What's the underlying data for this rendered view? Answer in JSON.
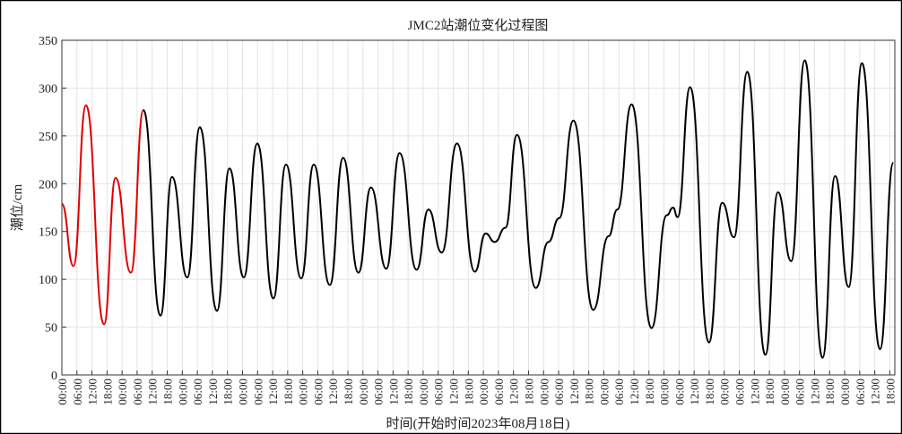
{
  "chart_data": {
    "type": "line",
    "title": "JMC2站潮位变化过程图",
    "xlabel": "时间(开始时间2023年08月18日)",
    "ylabel": "潮位/cm",
    "grid": true,
    "xlim": [
      0,
      332
    ],
    "ylim": [
      0,
      350
    ],
    "yticks": [
      0,
      50,
      100,
      150,
      200,
      250,
      300,
      350
    ],
    "xticks": [
      {
        "value": 0,
        "label": "00:00"
      },
      {
        "value": 6,
        "label": "06:00"
      },
      {
        "value": 12,
        "label": "12:00"
      },
      {
        "value": 18,
        "label": "18:00"
      },
      {
        "value": 24,
        "label": "00:00"
      },
      {
        "value": 30,
        "label": "06:00"
      },
      {
        "value": 36,
        "label": "12:00"
      },
      {
        "value": 42,
        "label": "18:00"
      },
      {
        "value": 48,
        "label": "00:00"
      },
      {
        "value": 54,
        "label": "06:00"
      },
      {
        "value": 60,
        "label": "12:00"
      },
      {
        "value": 66,
        "label": "18:00"
      },
      {
        "value": 72,
        "label": "00:00"
      },
      {
        "value": 78,
        "label": "06:00"
      },
      {
        "value": 84,
        "label": "12:00"
      },
      {
        "value": 90,
        "label": "18:00"
      },
      {
        "value": 96,
        "label": "00:00"
      },
      {
        "value": 102,
        "label": "06:00"
      },
      {
        "value": 108,
        "label": "12:00"
      },
      {
        "value": 114,
        "label": "18:00"
      },
      {
        "value": 120,
        "label": "00:00"
      },
      {
        "value": 126,
        "label": "06:00"
      },
      {
        "value": 132,
        "label": "12:00"
      },
      {
        "value": 138,
        "label": "18:00"
      },
      {
        "value": 144,
        "label": "00:00"
      },
      {
        "value": 150,
        "label": "06:00"
      },
      {
        "value": 156,
        "label": "12:00"
      },
      {
        "value": 162,
        "label": "18:00"
      },
      {
        "value": 168,
        "label": "00:00"
      },
      {
        "value": 174,
        "label": "06:00"
      },
      {
        "value": 180,
        "label": "12:00"
      },
      {
        "value": 186,
        "label": "18:00"
      },
      {
        "value": 192,
        "label": "00:00"
      },
      {
        "value": 198,
        "label": "06:00"
      },
      {
        "value": 204,
        "label": "12:00"
      },
      {
        "value": 210,
        "label": "18:00"
      },
      {
        "value": 216,
        "label": "00:00"
      },
      {
        "value": 222,
        "label": "06:00"
      },
      {
        "value": 228,
        "label": "12:00"
      },
      {
        "value": 234,
        "label": "18:00"
      },
      {
        "value": 240,
        "label": "00:00"
      },
      {
        "value": 246,
        "label": "06:00"
      },
      {
        "value": 252,
        "label": "12:00"
      },
      {
        "value": 258,
        "label": "18:00"
      },
      {
        "value": 264,
        "label": "00:00"
      },
      {
        "value": 270,
        "label": "06:00"
      },
      {
        "value": 276,
        "label": "12:00"
      },
      {
        "value": 282,
        "label": "18:00"
      },
      {
        "value": 288,
        "label": "00:00"
      },
      {
        "value": 294,
        "label": "06:00"
      },
      {
        "value": 300,
        "label": "12:00"
      },
      {
        "value": 306,
        "label": "18:00"
      },
      {
        "value": 312,
        "label": "00:00"
      },
      {
        "value": 318,
        "label": "06:00"
      },
      {
        "value": 324,
        "label": "12:00"
      },
      {
        "value": 330,
        "label": "18:00"
      }
    ],
    "series": [
      {
        "color": "#e00000",
        "x": [
          0,
          4.6,
          9.6,
          16.8,
          21.4,
          27.5,
          32.5
        ],
        "values": [
          179,
          114,
          282,
          53,
          206,
          107,
          277
        ]
      },
      {
        "color": "#000000",
        "x": [
          32.5,
          39.3,
          43.9,
          50,
          55,
          61.8,
          66.8,
          72.5,
          77.9,
          84.3,
          89.3,
          95.4,
          100.4,
          106.8,
          112.1,
          118.2,
          123.2,
          129.3,
          134.6,
          141.4,
          146.1,
          151.4,
          157.5,
          164.6,
          168.9,
          172.5,
          176.8,
          181.4,
          188.9,
          193.9,
          198.2,
          203.9,
          211.8,
          217.9,
          221.4,
          227.1,
          235,
          241.1,
          243.6,
          245.4,
          250.4,
          257.9,
          263.2,
          267.9,
          273.2,
          280.4,
          285.4,
          290.7,
          296.1,
          303.2,
          308.2,
          313.6,
          318.9,
          326.1,
          331.4
        ],
        "values": [
          277,
          62,
          207,
          102,
          259,
          67,
          216,
          102,
          242,
          80,
          220,
          101,
          220,
          94,
          227,
          107,
          196,
          111,
          232,
          110,
          173,
          128,
          242,
          108,
          148,
          139,
          154,
          251,
          91,
          139,
          164,
          266,
          68,
          145,
          173,
          283,
          49,
          167,
          175,
          165,
          301,
          34,
          180,
          144,
          317,
          21,
          191,
          119,
          329,
          18,
          208,
          92,
          326,
          27,
          222
        ]
      }
    ]
  }
}
